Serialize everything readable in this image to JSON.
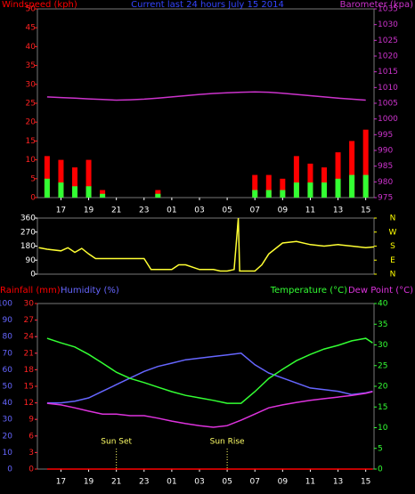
{
  "chart_data": [
    {
      "type": "bar",
      "title": "Current last 24 hours July 15 2014",
      "title_color": "#3344ff",
      "x": [
        16,
        17,
        18,
        19,
        20,
        21,
        22,
        23,
        24,
        25,
        26,
        27,
        28,
        29,
        30,
        31,
        32,
        33,
        34,
        35,
        36,
        37,
        38,
        39
      ],
      "xlim": [
        15.3,
        39.6
      ],
      "xticks": [
        17,
        19,
        21,
        23,
        {
          "value": 25,
          "label": "01"
        },
        {
          "value": 27,
          "label": "03"
        },
        {
          "value": 29,
          "label": "05"
        },
        {
          "value": 31,
          "label": "07"
        },
        {
          "value": 33,
          "label": "09"
        },
        {
          "value": 35,
          "label": "11"
        },
        {
          "value": 37,
          "label": "13"
        },
        {
          "value": 39,
          "label": "15"
        }
      ],
      "ylim": [
        0,
        50
      ],
      "yticks": [
        0,
        5,
        10,
        15,
        20,
        25,
        30,
        35,
        40,
        45,
        50
      ],
      "ytick_color": "#ff2222",
      "y2lim": [
        975,
        1035
      ],
      "y2ticks": [
        975,
        980,
        985,
        990,
        995,
        1000,
        1005,
        1010,
        1015,
        1020,
        1025,
        1030,
        1035
      ],
      "y2tick_color": "#cc33cc",
      "series": [
        {
          "name": "Windspeed (kph)",
          "type": "bar",
          "color": "#ff0000",
          "axis": "y",
          "values": [
            11,
            10,
            8,
            10,
            2,
            0,
            0,
            0,
            2,
            0,
            0,
            0,
            0,
            0,
            0,
            6,
            6,
            5,
            11,
            9,
            8,
            12,
            15,
            18
          ]
        },
        {
          "type": "bar",
          "color": "#33ff33",
          "axis": "y",
          "values": [
            5,
            4,
            3,
            3,
            1,
            0,
            0,
            0,
            1,
            0,
            0,
            0,
            0,
            0,
            0,
            2,
            2,
            2,
            4,
            4,
            4,
            5,
            6,
            6
          ]
        },
        {
          "name": "Barometer (kpa)",
          "type": "line",
          "color": "#cc33cc",
          "axis": "y2",
          "values": [
            1007.0,
            1006.8,
            1006.6,
            1006.4,
            1006.2,
            1006.0,
            1006.1,
            1006.3,
            1006.6,
            1007.0,
            1007.4,
            1007.8,
            1008.1,
            1008.3,
            1008.5,
            1008.6,
            1008.5,
            1008.2,
            1007.8,
            1007.4,
            1007.0,
            1006.6,
            1006.3,
            1006.0
          ]
        }
      ]
    },
    {
      "type": "line",
      "x": [
        15.4,
        16,
        17,
        17.5,
        18,
        18.5,
        19,
        19.5,
        20,
        21,
        22,
        23,
        23.5,
        24,
        25,
        25.5,
        26,
        27,
        28,
        28.5,
        29,
        29.5,
        29.8,
        29.9,
        30,
        31,
        31.5,
        32,
        33,
        34,
        35,
        36,
        37,
        38,
        39,
        39.6
      ],
      "xlim": [
        15.3,
        39.6
      ],
      "ylim": [
        0,
        360
      ],
      "yticks": [
        0,
        90,
        180,
        270,
        360
      ],
      "ytick_color": "#ffffff",
      "y2lim": [
        0,
        360
      ],
      "y2ticks": [
        {
          "value": 360,
          "label": "N"
        },
        {
          "value": 270,
          "label": "W"
        },
        {
          "value": 180,
          "label": "S"
        },
        {
          "value": 90,
          "label": "E"
        },
        {
          "value": 0,
          "label": "N"
        }
      ],
      "y2tick_color": "#ffff00",
      "series": [
        {
          "type": "line",
          "color": "#ffff33",
          "axis": "y",
          "values": [
            170,
            160,
            150,
            170,
            140,
            165,
            130,
            100,
            100,
            100,
            100,
            100,
            30,
            30,
            30,
            60,
            60,
            30,
            30,
            20,
            20,
            30,
            360,
            20,
            20,
            20,
            60,
            130,
            200,
            210,
            190,
            180,
            190,
            180,
            170,
            175
          ]
        }
      ]
    },
    {
      "type": "line",
      "x": [
        16,
        17,
        18,
        19,
        20,
        21,
        22,
        23,
        24,
        25,
        26,
        27,
        28,
        29,
        30,
        31,
        32,
        33,
        34,
        35,
        36,
        37,
        38,
        39,
        39.5
      ],
      "xlim": [
        15.3,
        39.6
      ],
      "xticks": [
        17,
        19,
        21,
        23,
        {
          "value": 25,
          "label": "01"
        },
        {
          "value": 27,
          "label": "03"
        },
        {
          "value": 29,
          "label": "05"
        },
        {
          "value": 31,
          "label": "07"
        },
        {
          "value": 33,
          "label": "09"
        },
        {
          "value": 35,
          "label": "11"
        },
        {
          "value": 37,
          "label": "13"
        },
        {
          "value": 39,
          "label": "15"
        }
      ],
      "ylim": [
        0,
        100
      ],
      "yticks": [
        0,
        10,
        20,
        30,
        40,
        50,
        60,
        70,
        80,
        90,
        100
      ],
      "ytick_color": "#6666ff",
      "y3lim": [
        0,
        30
      ],
      "y3ticks": [
        0,
        3,
        6,
        9,
        12,
        15,
        18,
        21,
        24,
        27,
        30
      ],
      "y3tick_color": "#ff2222",
      "y2lim": [
        0,
        40
      ],
      "y2ticks": [
        0,
        5,
        10,
        15,
        20,
        25,
        30,
        35,
        40
      ],
      "y2tick_color": "#33ff33",
      "annotations": [
        {
          "text": "Sun Set",
          "x": 21
        },
        {
          "text": "Sun Rise",
          "x": 29
        }
      ],
      "annotation_color": "#ffff66",
      "series": [
        {
          "name": "Rainfall (mm)",
          "type": "line",
          "color": "#ff0000",
          "axis": "y3",
          "values": [
            0,
            0,
            0,
            0,
            0,
            0,
            0,
            0,
            0,
            0,
            0,
            0,
            0,
            0,
            0,
            0,
            0,
            0,
            0,
            0,
            0,
            0,
            0,
            0,
            0
          ]
        },
        {
          "name": "Humidity (%)",
          "type": "line",
          "color": "#6666ff",
          "axis": "y",
          "values": [
            40,
            40,
            41,
            43,
            47,
            51,
            55,
            59,
            62,
            64,
            66,
            67,
            68,
            69,
            70,
            63,
            58,
            55,
            52,
            49,
            48,
            47,
            45,
            46,
            47
          ]
        },
        {
          "name": "Temperature (°C)",
          "type": "line",
          "color": "#33ff33",
          "axis": "y2",
          "values": [
            31.6,
            30.5,
            29.5,
            27.7,
            25.6,
            23.4,
            21.9,
            20.9,
            19.8,
            18.7,
            17.8,
            17.2,
            16.6,
            15.9,
            15.9,
            18.7,
            21.9,
            24.1,
            26.2,
            27.7,
            29,
            29.9,
            31,
            31.6,
            30.5
          ]
        },
        {
          "name": "Dew Point (°C)",
          "type": "line",
          "color": "#dd33dd",
          "axis": "y2",
          "values": [
            15.9,
            15.5,
            14.8,
            14,
            13.3,
            13.3,
            12.9,
            12.9,
            12.3,
            11.6,
            11,
            10.5,
            10.1,
            10.5,
            11.8,
            13.3,
            14.8,
            15.5,
            16.1,
            16.6,
            17,
            17.4,
            17.8,
            18.3,
            18.7
          ]
        }
      ]
    }
  ]
}
